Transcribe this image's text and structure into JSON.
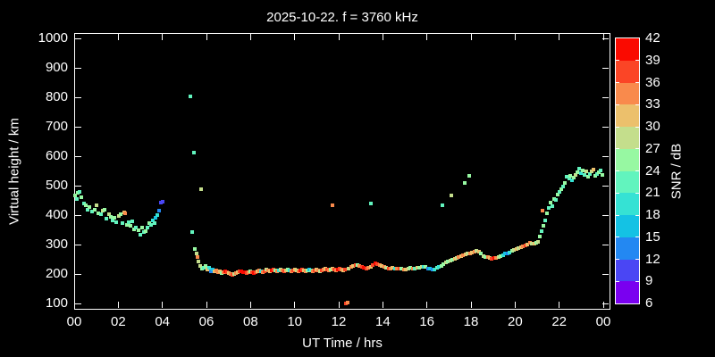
{
  "title": "2025-10-22. f = 3760 kHz",
  "axes": {
    "x": {
      "label": "UT Time / hrs",
      "tick_labels": [
        "00",
        "02",
        "04",
        "06",
        "08",
        "10",
        "12",
        "14",
        "16",
        "18",
        "20",
        "22",
        "00"
      ],
      "tick_hours": [
        0,
        2,
        4,
        6,
        8,
        10,
        12,
        14,
        16,
        18,
        20,
        22,
        24
      ],
      "range_hours": [
        0,
        24
      ]
    },
    "y": {
      "label": "Virtual height / km",
      "tick_values": [
        100,
        200,
        300,
        400,
        500,
        600,
        700,
        800,
        900,
        1000
      ],
      "range_km": [
        100,
        1000
      ]
    }
  },
  "colorbar": {
    "label": "SNR / dB",
    "tick_values": [
      6,
      9,
      12,
      15,
      18,
      21,
      24,
      27,
      30,
      33,
      36,
      39,
      42
    ],
    "bin_edges": [
      6,
      9,
      12,
      15,
      18,
      21,
      24,
      27,
      30,
      33,
      36,
      39,
      42
    ],
    "colors_low_to_high": [
      "#7a00f0",
      "#4a46f4",
      "#2388f2",
      "#14c2e4",
      "#35e2d4",
      "#62f4be",
      "#97f8a2",
      "#c4de8c",
      "#ecc06c",
      "#f98a4c",
      "#fb4526",
      "#fa0a00"
    ]
  },
  "style": {
    "background": "#000000",
    "foreground": "#ffffff"
  },
  "chart_data": {
    "type": "scatter",
    "title": "2025-10-22. f = 3760 kHz",
    "xlabel": "UT Time / hrs",
    "ylabel": "Virtual height / km",
    "color_label": "SNR / dB",
    "xlim": [
      0,
      24
    ],
    "ylim": [
      100,
      1000
    ],
    "clim": [
      6,
      42
    ],
    "grid": false,
    "columns": [
      "ut_hours",
      "virtual_height_km",
      "snr_db"
    ],
    "points": [
      [
        0.04,
        467,
        25
      ],
      [
        0.12,
        455,
        22
      ],
      [
        0.16,
        476,
        25
      ],
      [
        0.24,
        479,
        22
      ],
      [
        0.33,
        460,
        25
      ],
      [
        0.45,
        439,
        22
      ],
      [
        0.53,
        433,
        25
      ],
      [
        0.61,
        418,
        22
      ],
      [
        0.7,
        427,
        25
      ],
      [
        0.81,
        412,
        22
      ],
      [
        0.93,
        418,
        25
      ],
      [
        1.01,
        433,
        28
      ],
      [
        1.1,
        406,
        25
      ],
      [
        1.22,
        403,
        22
      ],
      [
        1.3,
        415,
        28
      ],
      [
        1.38,
        418,
        25
      ],
      [
        1.46,
        388,
        22
      ],
      [
        1.58,
        403,
        28
      ],
      [
        1.66,
        394,
        25
      ],
      [
        1.74,
        382,
        22
      ],
      [
        1.83,
        391,
        25
      ],
      [
        1.91,
        376,
        22
      ],
      [
        2.03,
        397,
        28
      ],
      [
        2.11,
        403,
        25
      ],
      [
        2.19,
        373,
        22
      ],
      [
        2.27,
        409,
        31
      ],
      [
        2.31,
        405,
        34
      ],
      [
        2.39,
        367,
        25
      ],
      [
        2.47,
        376,
        22
      ],
      [
        2.56,
        364,
        25
      ],
      [
        2.64,
        379,
        22
      ],
      [
        2.72,
        352,
        25
      ],
      [
        2.8,
        358,
        22
      ],
      [
        2.92,
        348,
        25
      ],
      [
        3.0,
        333,
        22
      ],
      [
        3.08,
        358,
        25
      ],
      [
        3.16,
        342,
        22
      ],
      [
        3.24,
        345,
        25
      ],
      [
        3.32,
        358,
        22
      ],
      [
        3.41,
        373,
        25
      ],
      [
        3.49,
        367,
        22
      ],
      [
        3.57,
        382,
        19
      ],
      [
        3.65,
        373,
        22
      ],
      [
        3.69,
        391,
        16
      ],
      [
        3.77,
        400,
        19
      ],
      [
        3.85,
        415,
        13
      ],
      [
        3.93,
        442,
        10
      ],
      [
        4.01,
        445,
        10
      ],
      [
        5.27,
        803,
        22
      ],
      [
        5.34,
        341,
        22
      ],
      [
        5.44,
        612,
        22
      ],
      [
        5.49,
        285,
        25
      ],
      [
        5.54,
        269,
        28
      ],
      [
        5.59,
        257,
        34
      ],
      [
        5.65,
        241,
        28
      ],
      [
        5.71,
        226,
        28
      ],
      [
        5.75,
        489,
        28
      ],
      [
        5.79,
        217,
        25
      ],
      [
        5.88,
        221,
        22
      ],
      [
        5.96,
        227,
        25
      ],
      [
        6.04,
        215,
        31
      ],
      [
        6.12,
        221,
        19
      ],
      [
        6.21,
        209,
        13
      ],
      [
        6.29,
        215,
        16
      ],
      [
        6.37,
        209,
        31
      ],
      [
        6.45,
        212,
        34
      ],
      [
        6.53,
        206,
        34
      ],
      [
        6.61,
        209,
        31
      ],
      [
        6.7,
        203,
        25
      ],
      [
        6.78,
        206,
        34
      ],
      [
        6.86,
        209,
        40
      ],
      [
        6.94,
        206,
        37
      ],
      [
        7.02,
        203,
        31
      ],
      [
        7.1,
        200,
        34
      ],
      [
        7.18,
        197,
        37
      ],
      [
        7.26,
        200,
        28
      ],
      [
        7.34,
        203,
        34
      ],
      [
        7.42,
        206,
        31
      ],
      [
        7.5,
        209,
        37
      ],
      [
        7.58,
        209,
        40
      ],
      [
        7.66,
        206,
        40
      ],
      [
        7.74,
        206,
        40
      ],
      [
        7.82,
        203,
        37
      ],
      [
        7.9,
        206,
        34
      ],
      [
        7.98,
        209,
        25
      ],
      [
        8.06,
        206,
        37
      ],
      [
        8.14,
        203,
        40
      ],
      [
        8.22,
        206,
        37
      ],
      [
        8.31,
        209,
        31
      ],
      [
        8.39,
        212,
        34
      ],
      [
        8.47,
        209,
        19
      ],
      [
        8.55,
        206,
        34
      ],
      [
        8.63,
        209,
        37
      ],
      [
        8.72,
        215,
        28
      ],
      [
        8.8,
        212,
        34
      ],
      [
        8.88,
        209,
        31
      ],
      [
        8.96,
        212,
        40
      ],
      [
        9.04,
        215,
        37
      ],
      [
        9.12,
        212,
        25
      ],
      [
        9.2,
        209,
        34
      ],
      [
        9.29,
        212,
        19
      ],
      [
        9.37,
        215,
        28
      ],
      [
        9.45,
        212,
        34
      ],
      [
        9.53,
        209,
        37
      ],
      [
        9.61,
        212,
        31
      ],
      [
        9.69,
        215,
        25
      ],
      [
        9.77,
        212,
        19
      ],
      [
        9.85,
        209,
        34
      ],
      [
        9.93,
        212,
        37
      ],
      [
        10.02,
        215,
        31
      ],
      [
        10.1,
        212,
        28
      ],
      [
        10.18,
        209,
        34
      ],
      [
        10.26,
        212,
        40
      ],
      [
        10.34,
        215,
        37
      ],
      [
        10.42,
        212,
        31
      ],
      [
        10.5,
        209,
        34
      ],
      [
        10.58,
        212,
        25
      ],
      [
        10.67,
        215,
        16
      ],
      [
        10.75,
        212,
        22
      ],
      [
        10.83,
        209,
        34
      ],
      [
        10.91,
        212,
        37
      ],
      [
        10.99,
        215,
        31
      ],
      [
        11.07,
        212,
        34
      ],
      [
        11.15,
        209,
        28
      ],
      [
        11.24,
        212,
        37
      ],
      [
        11.32,
        215,
        34
      ],
      [
        11.4,
        218,
        31
      ],
      [
        11.48,
        215,
        37
      ],
      [
        11.56,
        212,
        34
      ],
      [
        11.64,
        215,
        25
      ],
      [
        11.72,
        433,
        34
      ],
      [
        11.73,
        218,
        31
      ],
      [
        11.81,
        215,
        37
      ],
      [
        11.89,
        212,
        34
      ],
      [
        11.97,
        215,
        40
      ],
      [
        12.05,
        218,
        37
      ],
      [
        12.13,
        215,
        34
      ],
      [
        12.22,
        212,
        31
      ],
      [
        12.3,
        215,
        37
      ],
      [
        12.32,
        100,
        37
      ],
      [
        12.4,
        103,
        34
      ],
      [
        12.46,
        218,
        28
      ],
      [
        12.55,
        224,
        34
      ],
      [
        12.65,
        227,
        31
      ],
      [
        12.75,
        230,
        37
      ],
      [
        12.85,
        230,
        25
      ],
      [
        12.95,
        227,
        34
      ],
      [
        13.05,
        224,
        37
      ],
      [
        13.15,
        221,
        40
      ],
      [
        13.25,
        218,
        37
      ],
      [
        13.35,
        221,
        34
      ],
      [
        13.45,
        224,
        31
      ],
      [
        13.46,
        439,
        22
      ],
      [
        13.55,
        230,
        37
      ],
      [
        13.65,
        236,
        40
      ],
      [
        13.75,
        233,
        37
      ],
      [
        13.85,
        230,
        34
      ],
      [
        13.95,
        227,
        31
      ],
      [
        14.05,
        224,
        34
      ],
      [
        14.15,
        221,
        28
      ],
      [
        14.25,
        218,
        37
      ],
      [
        14.35,
        218,
        34
      ],
      [
        14.45,
        221,
        31
      ],
      [
        14.55,
        218,
        19
      ],
      [
        14.65,
        218,
        34
      ],
      [
        14.75,
        218,
        37
      ],
      [
        14.85,
        218,
        25
      ],
      [
        14.95,
        215,
        34
      ],
      [
        15.05,
        215,
        31
      ],
      [
        15.15,
        218,
        28
      ],
      [
        15.25,
        221,
        25
      ],
      [
        15.35,
        218,
        34
      ],
      [
        15.45,
        218,
        22
      ],
      [
        15.55,
        221,
        31
      ],
      [
        15.65,
        221,
        25
      ],
      [
        15.75,
        224,
        28
      ],
      [
        15.85,
        224,
        19
      ],
      [
        15.95,
        224,
        25
      ],
      [
        16.05,
        218,
        13
      ],
      [
        16.15,
        218,
        16
      ],
      [
        16.25,
        215,
        13
      ],
      [
        16.35,
        215,
        19
      ],
      [
        16.45,
        221,
        22
      ],
      [
        16.55,
        224,
        19
      ],
      [
        16.65,
        227,
        25
      ],
      [
        16.71,
        433,
        22
      ],
      [
        16.75,
        233,
        25
      ],
      [
        16.85,
        239,
        28
      ],
      [
        16.95,
        242,
        25
      ],
      [
        17.05,
        245,
        28
      ],
      [
        17.1,
        467,
        28
      ],
      [
        17.15,
        248,
        25
      ],
      [
        17.25,
        251,
        31
      ],
      [
        17.35,
        254,
        28
      ],
      [
        17.45,
        257,
        34
      ],
      [
        17.55,
        260,
        31
      ],
      [
        17.65,
        264,
        34
      ],
      [
        17.7,
        509,
        25
      ],
      [
        17.75,
        267,
        31
      ],
      [
        17.85,
        270,
        28
      ],
      [
        17.9,
        532,
        25
      ],
      [
        17.95,
        270,
        34
      ],
      [
        18.05,
        273,
        31
      ],
      [
        18.15,
        276,
        34
      ],
      [
        18.25,
        279,
        28
      ],
      [
        18.35,
        276,
        31
      ],
      [
        18.45,
        270,
        25
      ],
      [
        18.55,
        261,
        28
      ],
      [
        18.65,
        258,
        25
      ],
      [
        18.75,
        258,
        34
      ],
      [
        18.85,
        255,
        31
      ],
      [
        18.95,
        252,
        37
      ],
      [
        19.05,
        255,
        40
      ],
      [
        19.15,
        255,
        34
      ],
      [
        19.25,
        258,
        28
      ],
      [
        19.35,
        261,
        25
      ],
      [
        19.45,
        264,
        19
      ],
      [
        19.56,
        270,
        16
      ],
      [
        19.66,
        270,
        13
      ],
      [
        19.76,
        273,
        19
      ],
      [
        19.86,
        279,
        25
      ],
      [
        19.96,
        282,
        28
      ],
      [
        20.06,
        285,
        31
      ],
      [
        20.16,
        288,
        28
      ],
      [
        20.26,
        291,
        31
      ],
      [
        20.36,
        294,
        34
      ],
      [
        20.46,
        297,
        37
      ],
      [
        20.56,
        300,
        31
      ],
      [
        20.66,
        306,
        34
      ],
      [
        20.76,
        303,
        28
      ],
      [
        20.86,
        303,
        31
      ],
      [
        20.96,
        306,
        25
      ],
      [
        21.06,
        309,
        28
      ],
      [
        21.14,
        327,
        25
      ],
      [
        21.22,
        345,
        22
      ],
      [
        21.26,
        415,
        34
      ],
      [
        21.3,
        363,
        25
      ],
      [
        21.38,
        382,
        22
      ],
      [
        21.46,
        406,
        25
      ],
      [
        21.54,
        424,
        22
      ],
      [
        21.62,
        442,
        25
      ],
      [
        21.7,
        430,
        22
      ],
      [
        21.78,
        455,
        25
      ],
      [
        21.87,
        451,
        22
      ],
      [
        21.95,
        470,
        25
      ],
      [
        22.03,
        478,
        22
      ],
      [
        22.11,
        488,
        25
      ],
      [
        22.19,
        497,
        22
      ],
      [
        22.27,
        509,
        25
      ],
      [
        22.35,
        530,
        22
      ],
      [
        22.44,
        524,
        22
      ],
      [
        22.52,
        533,
        25
      ],
      [
        22.6,
        518,
        19
      ],
      [
        22.68,
        527,
        25
      ],
      [
        22.76,
        536,
        28
      ],
      [
        22.84,
        545,
        25
      ],
      [
        22.92,
        558,
        22
      ],
      [
        23.0,
        542,
        19
      ],
      [
        23.08,
        551,
        25
      ],
      [
        23.16,
        536,
        22
      ],
      [
        23.24,
        548,
        28
      ],
      [
        23.32,
        530,
        25
      ],
      [
        23.4,
        539,
        22
      ],
      [
        23.49,
        548,
        28
      ],
      [
        23.57,
        554,
        31
      ],
      [
        23.65,
        533,
        25
      ],
      [
        23.73,
        539,
        22
      ],
      [
        23.81,
        545,
        25
      ],
      [
        23.89,
        551,
        22
      ],
      [
        23.97,
        536,
        25
      ]
    ]
  }
}
